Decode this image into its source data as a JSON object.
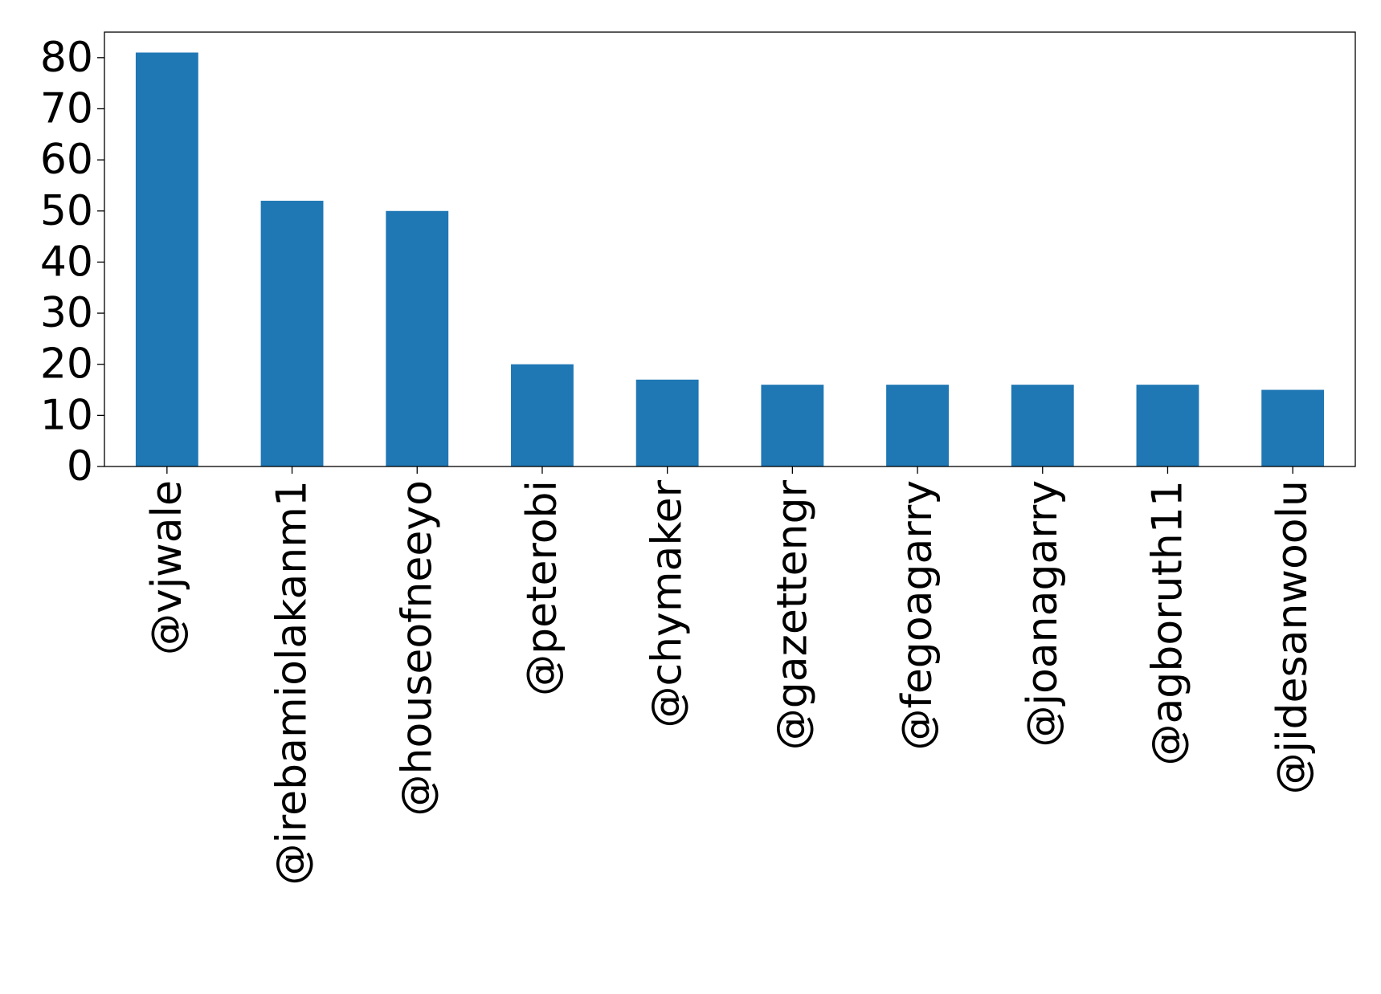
{
  "chart_data": {
    "type": "bar",
    "title": "",
    "xlabel": "",
    "ylabel": "",
    "categories": [
      "@vjwale",
      "@irebamiolakanm1",
      "@houseofneeyo",
      "@peterobi",
      "@chymaker",
      "@gazettengr",
      "@fegoagarry",
      "@joanagarry",
      "@agboruth11",
      "@jidesanwoolu"
    ],
    "values": [
      81,
      52,
      50,
      20,
      17,
      16,
      16,
      16,
      16,
      15
    ],
    "ylim": [
      0,
      85
    ],
    "yticks": [
      0,
      10,
      20,
      30,
      40,
      50,
      60,
      70,
      80
    ],
    "bar_color": "#1f77b4",
    "grid": false,
    "legend": "none"
  }
}
